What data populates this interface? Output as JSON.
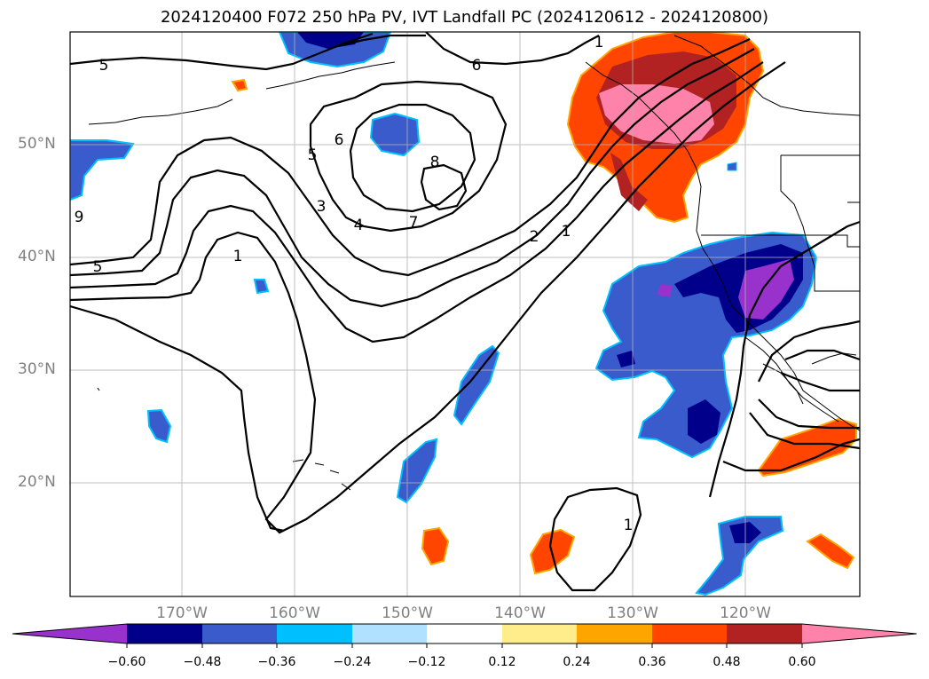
{
  "title": "2024120400 F072 250 hPa PV, IVT Landfall PC (2024120612 - 2024120800)",
  "lat_labels": [
    "50°N",
    "40°N",
    "30°N",
    "20°N"
  ],
  "lon_labels": [
    "170°W",
    "160°W",
    "150°W",
    "140°W",
    "130°W",
    "120°W"
  ],
  "pv_contour_labels": [
    "5",
    "6",
    "6",
    "5",
    "8",
    "3",
    "4",
    "7",
    "2",
    "1",
    "1",
    "5",
    "9",
    "1",
    "1"
  ],
  "colorbar": {
    "ticks": [
      "−0.60",
      "−0.48",
      "−0.36",
      "−0.24",
      "−0.12",
      "0.12",
      "0.24",
      "0.36",
      "0.48",
      "0.60"
    ],
    "colors": {
      "below": "#9932cc",
      "n060": "#00008b",
      "n048": "#3a5bcc",
      "n036": "#00bfff",
      "n024": "#b0e2ff",
      "n012": "#ffffff",
      "p012": "#ffec8b",
      "p024": "#ffa500",
      "p036": "#ff4500",
      "p048": "#b22222",
      "above": "#ff82ab"
    }
  }
}
